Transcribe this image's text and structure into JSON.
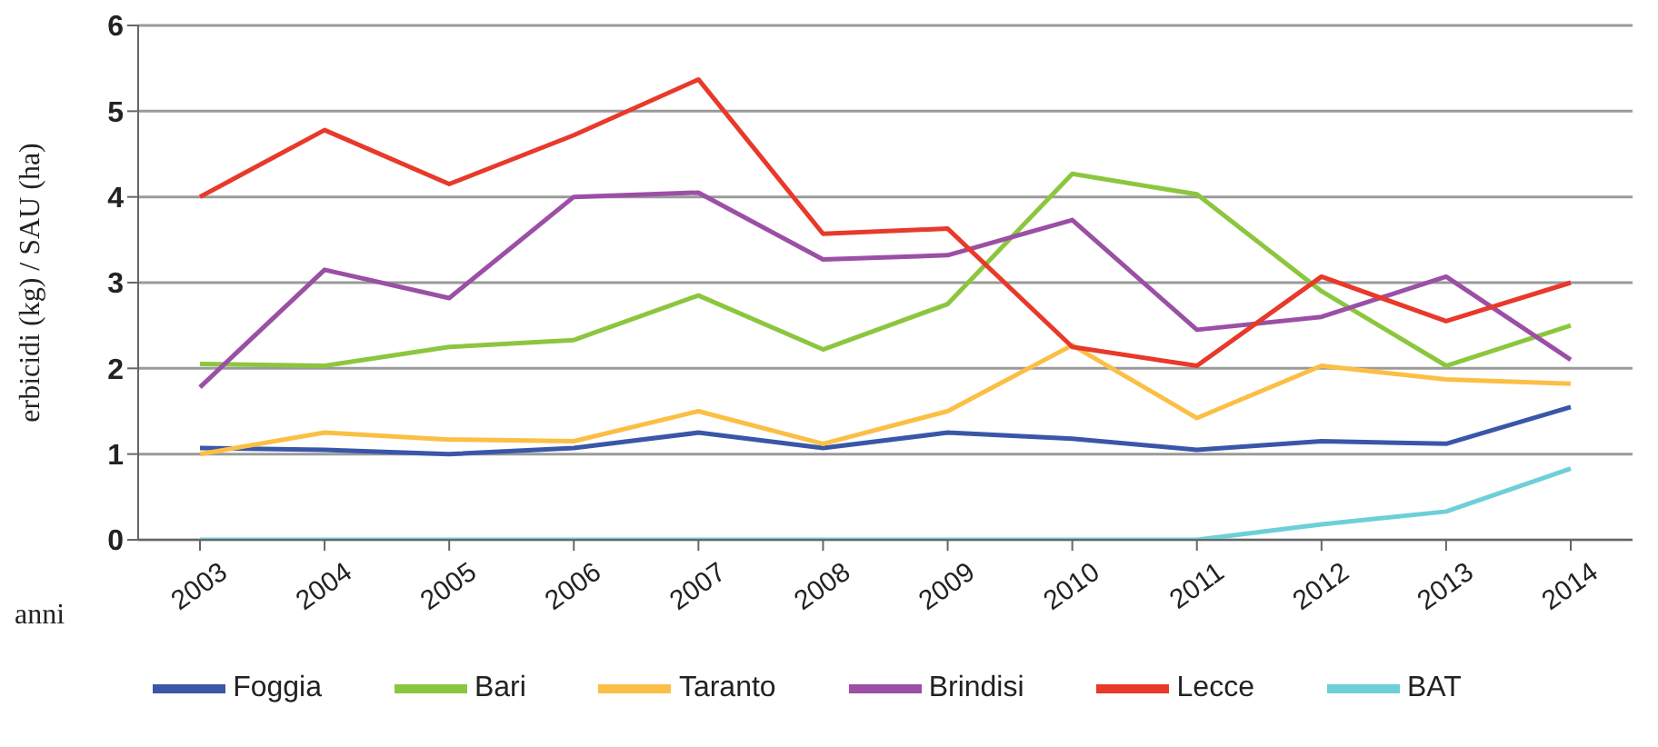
{
  "chart_data": {
    "type": "line",
    "ylabel": "erbicidi (kg) / SAU (ha)",
    "xlabel": "anni",
    "categories": [
      "2003",
      "2004",
      "2005",
      "2006",
      "2007",
      "2008",
      "2009",
      "2010",
      "2011",
      "2012",
      "2013",
      "2014"
    ],
    "series": [
      {
        "name": "Foggia",
        "color": "#3a56a8",
        "values": [
          1.07,
          1.05,
          1.0,
          1.07,
          1.25,
          1.07,
          1.25,
          1.18,
          1.05,
          1.15,
          1.12,
          1.55
        ]
      },
      {
        "name": "Bari",
        "color": "#8cc63f",
        "values": [
          2.05,
          2.03,
          2.25,
          2.33,
          2.85,
          2.22,
          2.75,
          4.27,
          4.03,
          2.9,
          2.03,
          2.5
        ]
      },
      {
        "name": "Taranto",
        "color": "#fbbf45",
        "values": [
          1.0,
          1.25,
          1.17,
          1.15,
          1.5,
          1.12,
          1.5,
          2.27,
          1.42,
          2.03,
          1.87,
          1.82
        ]
      },
      {
        "name": "Brindisi",
        "color": "#9b4fa5",
        "values": [
          1.78,
          3.15,
          2.82,
          4.0,
          4.05,
          3.27,
          3.32,
          3.73,
          2.45,
          2.6,
          3.07,
          2.1
        ]
      },
      {
        "name": "Lecce",
        "color": "#e8392a",
        "values": [
          4.0,
          4.78,
          4.15,
          4.72,
          5.37,
          3.57,
          3.63,
          2.25,
          2.03,
          3.07,
          2.55,
          3.0
        ]
      },
      {
        "name": "BAT",
        "color": "#6dcfd8",
        "values": [
          0,
          0,
          0,
          0,
          0,
          0,
          0,
          0,
          0,
          0.18,
          0.33,
          0.83
        ]
      }
    ],
    "ylim": [
      0,
      6
    ],
    "yticks": [
      0,
      1,
      2,
      3,
      4,
      5,
      6
    ],
    "grid": "y",
    "legend": "bottom",
    "marker": "none",
    "line_style": "solid"
  }
}
